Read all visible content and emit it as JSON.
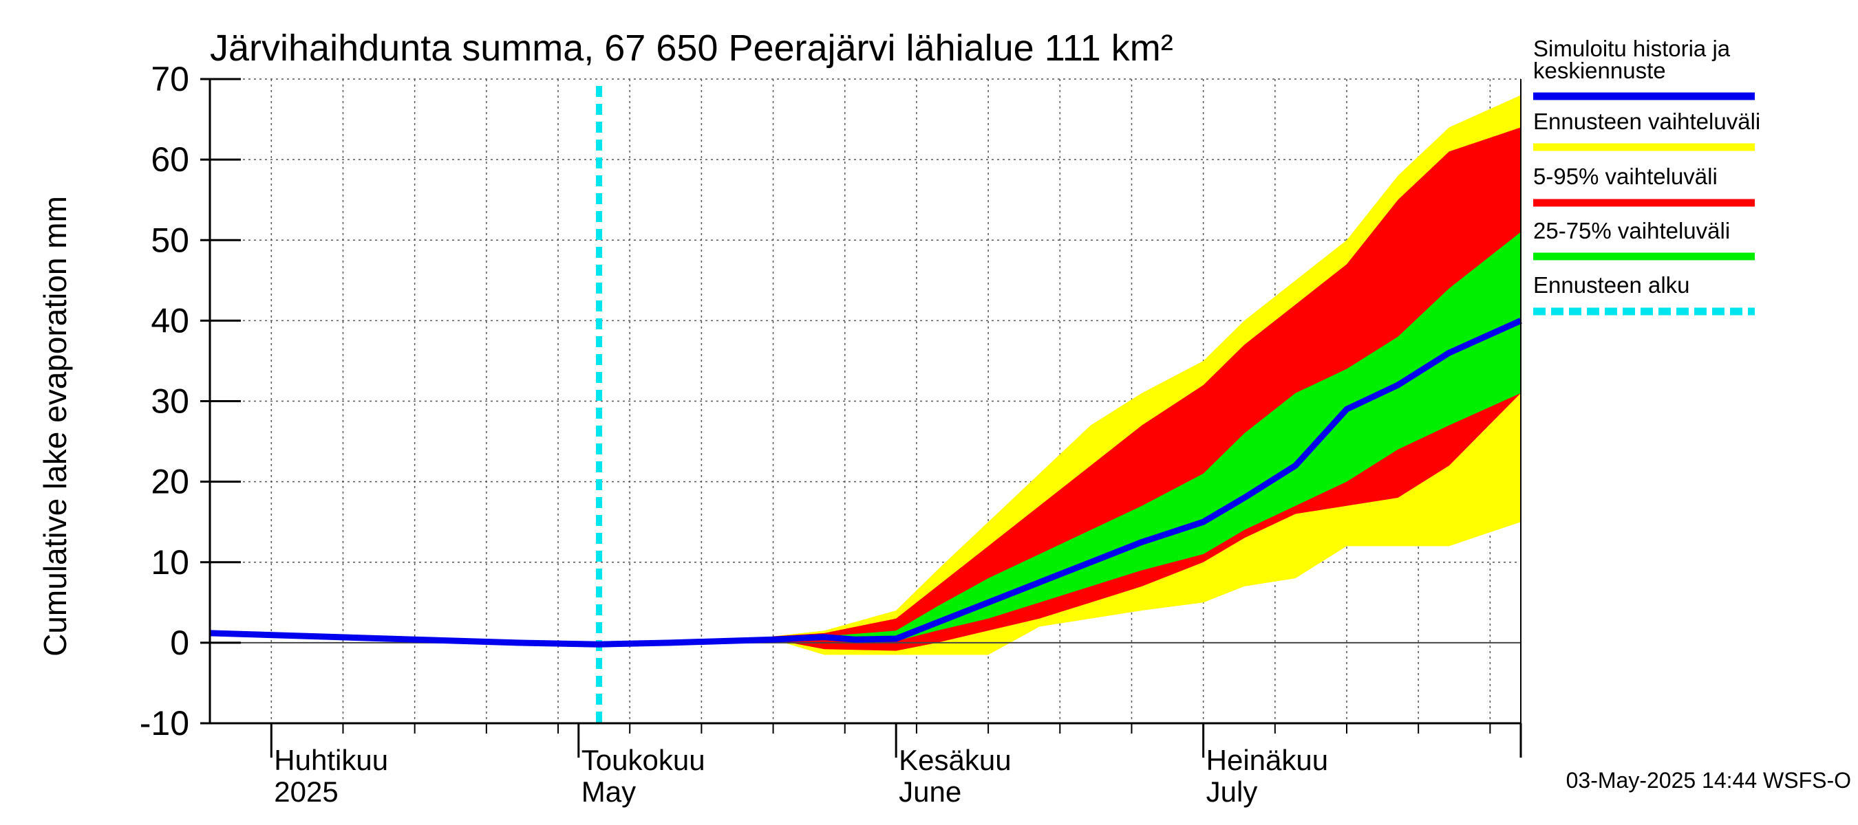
{
  "chart_data": {
    "type": "area",
    "title": "Järvihaihdunta summa, 67 650 Peerajärvi lähialue 111 km²",
    "ylabel": "Cumulative lake evaporation   mm",
    "xlabel": "",
    "ylim": [
      -10,
      70
    ],
    "yticks": [
      -10,
      0,
      10,
      20,
      30,
      40,
      50,
      60,
      70
    ],
    "xlim": [
      "2025-03-26",
      "2025-08-01"
    ],
    "month_labels": [
      {
        "date": "2025-04-01",
        "fi": "Huhtikuu",
        "en": "2025"
      },
      {
        "date": "2025-05-01",
        "fi": "Toukokuu",
        "en": "May"
      },
      {
        "date": "2025-06-01",
        "fi": "Kesäkuu",
        "en": "June"
      },
      {
        "date": "2025-07-01",
        "fi": "Heinäkuu",
        "en": "July"
      }
    ],
    "forecast_start": "2025-05-03",
    "grid": true,
    "legend_position": "right",
    "colors": {
      "history_median": "#0000ee",
      "full_range": "#ffff00",
      "range_5_95": "#ff0000",
      "range_25_75": "#00ee00",
      "forecast_start": "#00e5ee"
    },
    "series": [
      {
        "name": "Simuloitu historia ja keskiennuste",
        "x": [
          "2025-03-26",
          "2025-04-05",
          "2025-04-15",
          "2025-04-25",
          "2025-05-03",
          "2025-05-10",
          "2025-05-20",
          "2025-05-25",
          "2025-05-28",
          "2025-06-01",
          "2025-06-05",
          "2025-06-10",
          "2025-06-15",
          "2025-06-20",
          "2025-06-25",
          "2025-07-01",
          "2025-07-05",
          "2025-07-10",
          "2025-07-15",
          "2025-07-20",
          "2025-07-25",
          "2025-08-01"
        ],
        "y": [
          1.2,
          0.8,
          0.4,
          0.0,
          -0.2,
          0.0,
          0.4,
          0.7,
          0.4,
          0.5,
          2.5,
          5.0,
          7.5,
          10.0,
          12.5,
          15.0,
          18.0,
          22.0,
          29.0,
          32.0,
          36.0,
          40.0
        ]
      }
    ],
    "bands": [
      {
        "name": "Ennusteen vaihteluväli",
        "x": [
          "2025-05-20",
          "2025-05-25",
          "2025-06-01",
          "2025-06-05",
          "2025-06-10",
          "2025-06-15",
          "2025-06-20",
          "2025-06-25",
          "2025-07-01",
          "2025-07-05",
          "2025-07-10",
          "2025-07-15",
          "2025-07-20",
          "2025-07-25",
          "2025-08-01"
        ],
        "upper": [
          0.8,
          1.5,
          4.0,
          9.0,
          15.0,
          21.0,
          27.0,
          31.0,
          35.0,
          40.0,
          45.0,
          50.0,
          58.0,
          64.0,
          68.0
        ],
        "lower": [
          0.4,
          -1.5,
          -1.5,
          -1.5,
          -1.5,
          2.0,
          3.0,
          4.0,
          5.0,
          7.0,
          8.0,
          12.0,
          12.0,
          12.0,
          15.0
        ]
      },
      {
        "name": "5-95% vaihteluväli",
        "x": [
          "2025-05-20",
          "2025-05-25",
          "2025-06-01",
          "2025-06-05",
          "2025-06-10",
          "2025-06-15",
          "2025-06-20",
          "2025-06-25",
          "2025-07-01",
          "2025-07-05",
          "2025-07-10",
          "2025-07-15",
          "2025-07-20",
          "2025-07-25",
          "2025-08-01"
        ],
        "upper": [
          0.8,
          1.2,
          3.0,
          7.0,
          12.0,
          17.0,
          22.0,
          27.0,
          32.0,
          37.0,
          42.0,
          47.0,
          55.0,
          61.0,
          64.0
        ],
        "lower": [
          0.4,
          -0.8,
          -1.0,
          0.0,
          1.5,
          3.0,
          5.0,
          7.0,
          10.0,
          13.0,
          16.0,
          17.0,
          18.0,
          22.0,
          31.0
        ]
      },
      {
        "name": "25-75% vaihteluväli",
        "x": [
          "2025-05-25",
          "2025-06-01",
          "2025-06-05",
          "2025-06-10",
          "2025-06-15",
          "2025-06-20",
          "2025-06-25",
          "2025-07-01",
          "2025-07-05",
          "2025-07-10",
          "2025-07-15",
          "2025-07-20",
          "2025-07-25",
          "2025-08-01"
        ],
        "upper": [
          0.8,
          1.5,
          4.5,
          8.0,
          11.0,
          14.0,
          17.0,
          21.0,
          26.0,
          31.0,
          34.0,
          38.0,
          44.0,
          51.0
        ],
        "lower": [
          0.4,
          0.2,
          1.5,
          3.0,
          5.0,
          7.0,
          9.0,
          11.0,
          14.0,
          17.0,
          20.0,
          24.0,
          27.0,
          31.0
        ]
      }
    ],
    "legend": [
      {
        "label_line1": "Simuloitu historia ja",
        "label_line2": "keskiennuste",
        "color": "#0000ee",
        "style": "solid"
      },
      {
        "label_line1": "Ennusteen vaihteluväli",
        "label_line2": "",
        "color": "#ffff00",
        "style": "solid"
      },
      {
        "label_line1": "5-95% vaihteluväli",
        "label_line2": "",
        "color": "#ff0000",
        "style": "solid"
      },
      {
        "label_line1": "25-75% vaihteluväli",
        "label_line2": "",
        "color": "#00ee00",
        "style": "solid"
      },
      {
        "label_line1": "Ennusteen alku",
        "label_line2": "",
        "color": "#00e5ee",
        "style": "dashed"
      }
    ]
  },
  "footer": "03-May-2025 14:44 WSFS-O"
}
